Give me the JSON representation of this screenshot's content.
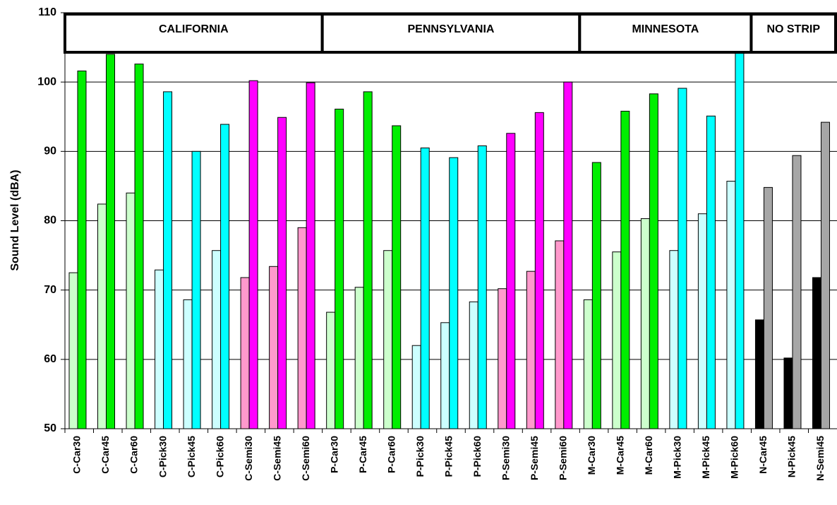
{
  "chart_data": {
    "type": "bar",
    "y_label": "Sound Level (dBA)",
    "ylim": [
      50,
      110
    ],
    "yticks": [
      50,
      60,
      70,
      80,
      90,
      100,
      110
    ],
    "grid": true,
    "categories": [
      "C-Car30",
      "C-Car45",
      "C-Car60",
      "C-Pick30",
      "C-Pick45",
      "C-Pick60",
      "C-Semi30",
      "C-Semi45",
      "C-Semi60",
      "P-Car30",
      "P-Car45",
      "P-Car60",
      "P-Pick30",
      "P-Pick45",
      "P-Pick60",
      "P-Semi30",
      "P-Semi45",
      "P-Semi60",
      "M-Car30",
      "M-Car45",
      "M-Car60",
      "M-Pick30",
      "M-Pick45",
      "M-Pick60",
      "N-Car45",
      "N-Pick45",
      "N-Semi45"
    ],
    "series": [
      {
        "values": [
          72.5,
          82.4,
          84,
          72.9,
          68.6,
          75.7,
          71.8,
          73.4,
          79,
          66.8,
          70.4,
          75.7,
          62,
          65.3,
          68.3,
          70.2,
          72.7,
          77.1,
          68.6,
          75.5,
          80.3,
          75.7,
          81,
          85.7,
          65.7,
          60.2,
          71.8
        ],
        "colors": [
          "#ccffcc",
          "#ccffcc",
          "#ccffcc",
          "#ccffff",
          "#ccffff",
          "#ccffff",
          "#ff99cc",
          "#ff99cc",
          "#ff99cc",
          "#ccffcc",
          "#ccffcc",
          "#ccffcc",
          "#ccffff",
          "#ccffff",
          "#ccffff",
          "#ff99cc",
          "#ff99cc",
          "#ff99cc",
          "#ccffcc",
          "#ccffcc",
          "#ccffcc",
          "#ccffff",
          "#ccffff",
          "#ccffff",
          "#000000",
          "#000000",
          "#000000"
        ]
      },
      {
        "values": [
          101.6,
          104,
          102.6,
          98.6,
          90,
          93.9,
          100.2,
          94.9,
          99.9,
          96.1,
          98.6,
          93.7,
          90.5,
          89.1,
          90.8,
          92.6,
          95.6,
          100,
          88.4,
          95.8,
          98.3,
          99.1,
          95.1,
          105,
          84.8,
          89.4,
          94.2
        ],
        "colors": [
          "#00ee00",
          "#00ee00",
          "#00ee00",
          "#00ffff",
          "#00ffff",
          "#00ffff",
          "#ff00ff",
          "#ff00ff",
          "#ff00ff",
          "#00ee00",
          "#00ee00",
          "#00ee00",
          "#00ffff",
          "#00ffff",
          "#00ffff",
          "#ff00ff",
          "#ff00ff",
          "#ff00ff",
          "#00ee00",
          "#00ee00",
          "#00ee00",
          "#00ffff",
          "#00ffff",
          "#00ffff",
          "#a6a6a6",
          "#a6a6a6",
          "#a6a6a6"
        ]
      }
    ],
    "groups": [
      {
        "label": "CALIFORNIA",
        "span": 9
      },
      {
        "label": "PENNSYLVANIA",
        "span": 9
      },
      {
        "label": "MINNESOTA",
        "span": 6
      },
      {
        "label": "NO STRIP",
        "span": 3
      }
    ]
  }
}
